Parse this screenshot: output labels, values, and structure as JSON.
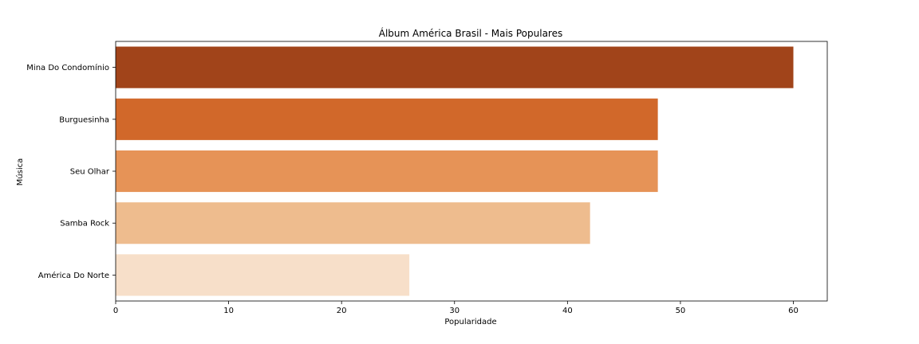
{
  "chart_data": {
    "type": "bar",
    "orientation": "horizontal",
    "title": "Álbum América Brasil - Mais Populares",
    "xlabel": "Popularidade",
    "ylabel": "Música",
    "categories": [
      "Mina Do Condomínio",
      "Burguesinha",
      "Seu Olhar",
      "Samba Rock",
      "América Do Norte"
    ],
    "values": [
      60,
      48,
      48,
      42,
      26
    ],
    "colors": [
      "#a1441a",
      "#d1682a",
      "#e69357",
      "#eebc8e",
      "#f7dfc9"
    ],
    "xlim": [
      0,
      63
    ],
    "xticks": [
      0,
      10,
      20,
      30,
      40,
      50,
      60
    ],
    "grid": false,
    "legend": "none"
  }
}
